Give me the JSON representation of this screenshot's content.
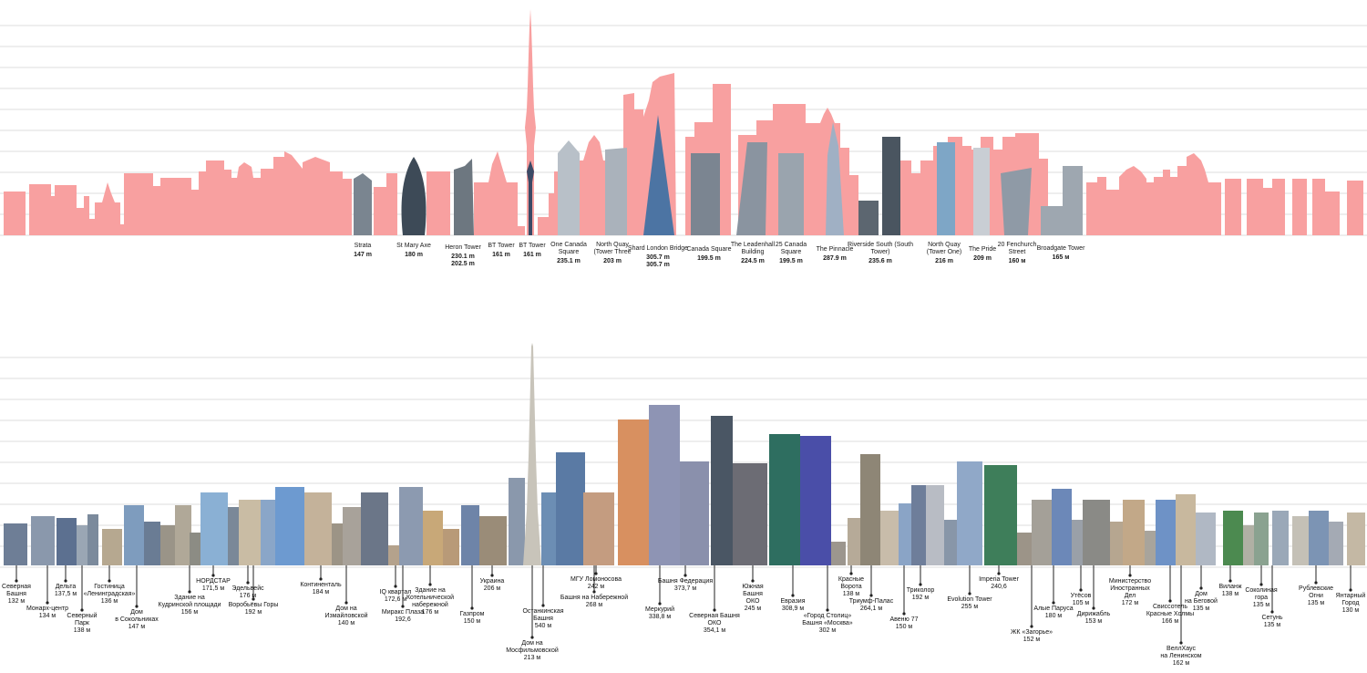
{
  "colors": {
    "london_silhouette": "#f8a0a0",
    "gridline": "#dcdcdc",
    "leader": "#222222"
  },
  "london": {
    "labels": [
      {
        "name": "Strata",
        "height": "147 m"
      },
      {
        "name": "St Mary Axe",
        "height": "180 m"
      },
      {
        "name": "Heron Tower",
        "height": "230.1 m\n202.5 m"
      },
      {
        "name": "BT Tower",
        "height": "161 m"
      },
      {
        "name": "BT Tower",
        "height": "161 m"
      },
      {
        "name": "One Canada\nSquare",
        "height": "235.1 m"
      },
      {
        "name": "North Quay\n(Tower Three",
        "height": "203 m"
      },
      {
        "name": "Shard London Bridge",
        "height": "305.7 m\n305.7 m"
      },
      {
        "name": "Canada Square",
        "height": "199.5 m"
      },
      {
        "name": "The Leadenhall\nBuilding",
        "height": "224.5 m"
      },
      {
        "name": "25 Canada\nSquare",
        "height": "199.5 m"
      },
      {
        "name": "The Pinnacle",
        "height": "287.9 m"
      },
      {
        "name": "Riverside South (South\nTower)",
        "height": "235.6 m"
      },
      {
        "name": "North Quay\n(Tower One)",
        "height": "216 m"
      },
      {
        "name": "The Pride",
        "height": "209 m"
      },
      {
        "name": "20 Fenchurch\nStreet",
        "height": "160 м"
      },
      {
        "name": "Broadgate Tower",
        "height": "165 м"
      }
    ]
  },
  "moscow": {
    "labels": [
      {
        "name": "Северная\nБашня",
        "height": "132 м"
      },
      {
        "name": "Монарх-центр",
        "height": "134 м"
      },
      {
        "name": "Дельта",
        "height": "137,5 м"
      },
      {
        "name": "Северный\nПарк",
        "height": "138 м"
      },
      {
        "name": "Гостиница\n«Ленинградская»",
        "height": "136 м"
      },
      {
        "name": "Дом\nв Сокольниках",
        "height": "147 м"
      },
      {
        "name": "Здание на\nКудринской площади",
        "height": "156 м"
      },
      {
        "name": "НОРДСТАР",
        "height": "171,5 м"
      },
      {
        "name": "Эдельвейс",
        "height": "176 м"
      },
      {
        "name": "Воробьёвы Горы",
        "height": "192 м"
      },
      {
        "name": "Континенталь",
        "height": "184 м"
      },
      {
        "name": "Дом на\nИзмайловской",
        "height": "140 м"
      },
      {
        "name": "IQ квартал",
        "height": "172,6 м"
      },
      {
        "name": "Миракс Плаза",
        "height": "192,6"
      },
      {
        "name": "Здание на\nКотельнической\nнабережной",
        "height": "176 м"
      },
      {
        "name": "Газпром",
        "height": "150 м"
      },
      {
        "name": "Украина",
        "height": "206 м"
      },
      {
        "name": "Дом на\nМосфильмовской",
        "height": "213 м"
      },
      {
        "name": "Останкинская\nБашня",
        "height": "540 м"
      },
      {
        "name": "МГУ Ломоносова",
        "height": "242 м"
      },
      {
        "name": "Башня на Набережной",
        "height": "268 м"
      },
      {
        "name": "Меркурий",
        "height": "338,8 м"
      },
      {
        "name": "Башня Федерация",
        "height": "373,7 м"
      },
      {
        "name": "Северная Башня\nОКО",
        "height": "354,1 м"
      },
      {
        "name": "Южная\nБашня\nОКО",
        "height": "245 м"
      },
      {
        "name": "Евразия",
        "height": "308,9 м"
      },
      {
        "name": "«Город Столиц»\nБашня «Москва»",
        "height": "302 м"
      },
      {
        "name": "Красные\nВорота",
        "height": "138 м"
      },
      {
        "name": "Триумф-Палас",
        "height": "264,1 м"
      },
      {
        "name": "Авеню 77",
        "height": "150 м"
      },
      {
        "name": "Триколор",
        "height": "192 м"
      },
      {
        "name": "Evolution Tower",
        "height": "255 м"
      },
      {
        "name": "Imperia Tower",
        "height": "240,6"
      },
      {
        "name": "ЖК «Загорье»",
        "height": "152 м"
      },
      {
        "name": "Алые Паруса",
        "height": "180 м"
      },
      {
        "name": "Утёсов",
        "height": "105 м"
      },
      {
        "name": "Дирижабль",
        "height": "153 м"
      },
      {
        "name": "Министерство\nИностранных\nДел",
        "height": "172 м"
      },
      {
        "name": "Свиссотель\nКрасные Холмы",
        "height": "166 м"
      },
      {
        "name": "ВеллХаус\nна Ленинском",
        "height": "162 м"
      },
      {
        "name": "Дом\nна Беговой",
        "height": "135 м"
      },
      {
        "name": "Виланж",
        "height": "138 м"
      },
      {
        "name": "Соколиная\nгора",
        "height": "135 м"
      },
      {
        "name": "Сетунь",
        "height": "135 м"
      },
      {
        "name": "Рублевские\nОгни",
        "height": "135 м"
      },
      {
        "name": "Янтарный\nГород",
        "height": "130 м"
      }
    ]
  }
}
